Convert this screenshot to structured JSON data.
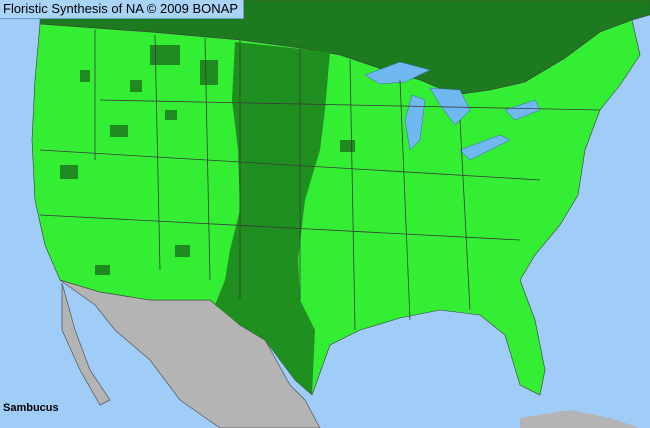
{
  "header": {
    "title": "Floristic Synthesis of NA © 2009 BONAP"
  },
  "map": {
    "taxon": "Sambucus",
    "colors": {
      "ocean": "#9fcdf7",
      "present": "#33ee33",
      "canada": "#1e7a1e",
      "native_dark": "#1f8a1f",
      "mexico": "#b4b4b4",
      "lakes": "#6fb8f2",
      "borders": "#555555"
    }
  }
}
